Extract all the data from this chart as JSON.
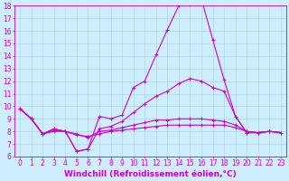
{
  "xlabel": "Windchill (Refroidissement éolien,°C)",
  "ylabel": "",
  "bg_color": "#cceeff",
  "grid_color": "#aaccdd",
  "line_color": "#cc00cc",
  "xlim": [
    -0.5,
    23.5
  ],
  "ylim": [
    6,
    18
  ],
  "yticks": [
    6,
    7,
    8,
    9,
    10,
    11,
    12,
    13,
    14,
    15,
    16,
    17,
    18
  ],
  "xticks": [
    0,
    1,
    2,
    3,
    4,
    5,
    6,
    7,
    8,
    9,
    10,
    11,
    12,
    13,
    14,
    15,
    16,
    17,
    18,
    19,
    20,
    21,
    22,
    23
  ],
  "line1_x": [
    0,
    1,
    2,
    3,
    4,
    5,
    6,
    7,
    8,
    9,
    10,
    11,
    12,
    13,
    14,
    15,
    16,
    17,
    18,
    19,
    20,
    21,
    22,
    23
  ],
  "line1_y": [
    9.8,
    9.0,
    7.8,
    8.2,
    8.0,
    6.4,
    6.6,
    9.2,
    9.0,
    9.3,
    11.5,
    12.0,
    14.1,
    16.1,
    18.0,
    18.1,
    18.5,
    15.3,
    12.1,
    9.2,
    7.9,
    7.9,
    8.0,
    7.9
  ],
  "line2_x": [
    0,
    1,
    2,
    3,
    4,
    5,
    6,
    7,
    8,
    9,
    10,
    11,
    12,
    13,
    14,
    15,
    16,
    17,
    18,
    19,
    20,
    21,
    22,
    23
  ],
  "line2_y": [
    9.8,
    9.0,
    7.8,
    8.2,
    8.0,
    6.4,
    6.6,
    8.2,
    8.4,
    8.8,
    9.5,
    10.2,
    10.8,
    11.2,
    11.8,
    12.2,
    12.0,
    11.5,
    11.2,
    9.2,
    7.9,
    7.9,
    8.0,
    7.9
  ],
  "line3_x": [
    0,
    1,
    2,
    3,
    4,
    5,
    6,
    7,
    8,
    9,
    10,
    11,
    12,
    13,
    14,
    15,
    16,
    17,
    18,
    19,
    20,
    21,
    22,
    23
  ],
  "line3_y": [
    9.8,
    9.0,
    7.8,
    8.1,
    8.0,
    7.8,
    7.5,
    8.0,
    8.1,
    8.3,
    8.5,
    8.7,
    8.9,
    8.9,
    9.0,
    9.0,
    9.0,
    8.9,
    8.8,
    8.5,
    8.0,
    7.9,
    8.0,
    7.9
  ],
  "line4_x": [
    0,
    1,
    2,
    3,
    4,
    5,
    6,
    7,
    8,
    9,
    10,
    11,
    12,
    13,
    14,
    15,
    16,
    17,
    18,
    19,
    20,
    21,
    22,
    23
  ],
  "line4_y": [
    9.8,
    9.0,
    7.8,
    8.0,
    8.0,
    7.7,
    7.6,
    7.8,
    8.0,
    8.1,
    8.2,
    8.3,
    8.4,
    8.5,
    8.5,
    8.5,
    8.5,
    8.5,
    8.5,
    8.3,
    8.0,
    7.9,
    8.0,
    7.9
  ],
  "tick_fontsize": 5.5,
  "label_fontsize": 6.5,
  "marker": "+",
  "markersize": 3,
  "linewidth": 0.8
}
